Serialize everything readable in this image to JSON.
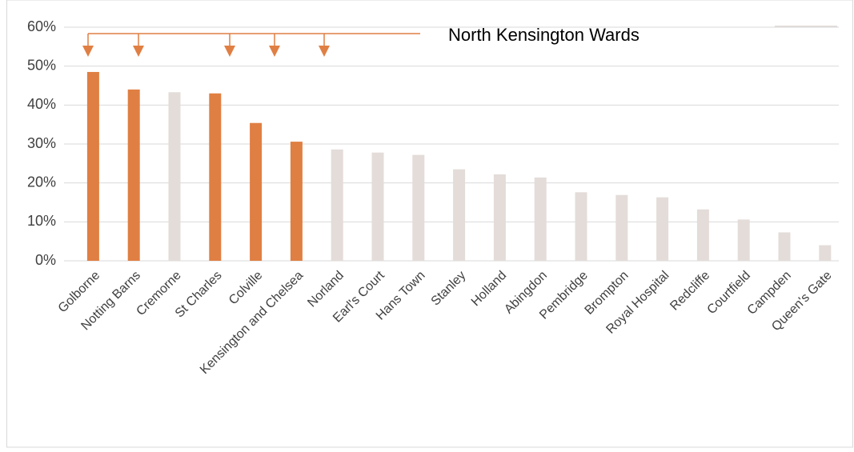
{
  "chart_data": {
    "type": "bar",
    "annotation": "North Kensington Wards",
    "categories": [
      "Golborne",
      "Notting Barns",
      "Cremorne",
      "St Charles",
      "Colville",
      "Kensington and Chelsea",
      "Norland",
      "Earl's Court",
      "Hans Town",
      "Stanley",
      "Holland",
      "Abingdon",
      "Pembridge",
      "Brompton",
      "Royal Hospital",
      "Redcliffe",
      "Courtfield",
      "Campden",
      "Queen's Gate"
    ],
    "values": [
      48.5,
      44,
      43.3,
      43,
      35.4,
      30.6,
      28.6,
      27.8,
      27.2,
      23.5,
      22.2,
      21.4,
      17.6,
      16.9,
      16.3,
      13.2,
      10.6,
      7.3,
      4
    ],
    "colors": [
      "#e07f43",
      "#e07f43",
      "#e3dcd9",
      "#e07f43",
      "#e07f43",
      "#e07f43",
      "#e3dcd9",
      "#e3dcd9",
      "#e3dcd9",
      "#e3dcd9",
      "#e3dcd9",
      "#e3dcd9",
      "#e3dcd9",
      "#e3dcd9",
      "#e3dcd9",
      "#e3dcd9",
      "#e3dcd9",
      "#e3dcd9",
      "#e3dcd9"
    ],
    "ylim": [
      0,
      60
    ],
    "yticks": [
      {
        "value": 0,
        "label": "0%"
      },
      {
        "value": 10,
        "label": "10%"
      },
      {
        "value": 20,
        "label": "20%"
      },
      {
        "value": 30,
        "label": "30%"
      },
      {
        "value": 40,
        "label": "40%"
      },
      {
        "value": 50,
        "label": "50%"
      },
      {
        "value": 60,
        "label": "60%"
      }
    ],
    "grid": true
  }
}
